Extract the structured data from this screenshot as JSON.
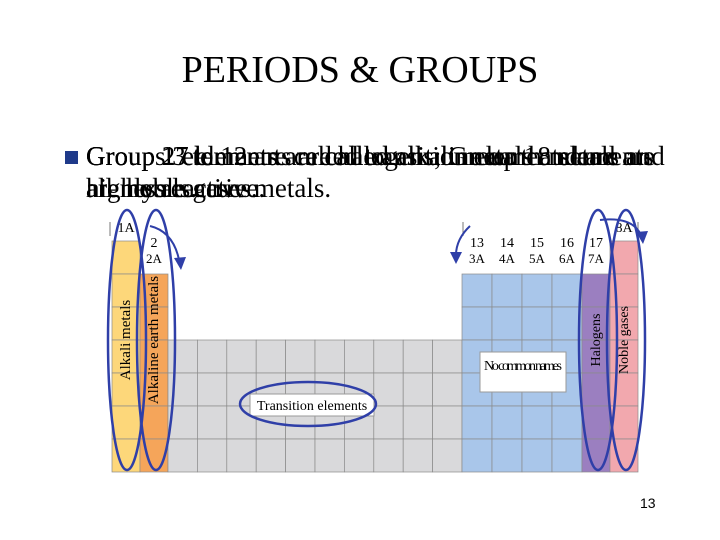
{
  "title": "PERIODS & GROUPS",
  "bullet_lines": [
    "Group 1 elements are called alkali metals and are highly reactive metals.",
    "Group 2 elements are called alkaline earth metals and are less reactive.",
    "Groups 3 to 12 are called transition elements and are all metals.",
    "Group 17 elements are halogens; Group 18 elements are noble gases."
  ],
  "table": {
    "group_labels": [
      {
        "number": "1A",
        "alt": null
      },
      {
        "number": "2",
        "alt": "2A"
      },
      {
        "number": "13",
        "alt": "3A"
      },
      {
        "number": "14",
        "alt": "4A"
      },
      {
        "number": "15",
        "alt": "5A"
      },
      {
        "number": "16",
        "alt": "6A"
      },
      {
        "number": "17",
        "alt": "7A"
      },
      {
        "number": "8A",
        "alt": null
      }
    ],
    "region_labels": {
      "alkali": "Alkali metals",
      "alkaline_earth": "Alkaline earth metals",
      "transition": "Transition elements",
      "no_common": "No common names",
      "halogens": "Halogens",
      "noble": "Noble gases"
    }
  },
  "page_number": "13"
}
